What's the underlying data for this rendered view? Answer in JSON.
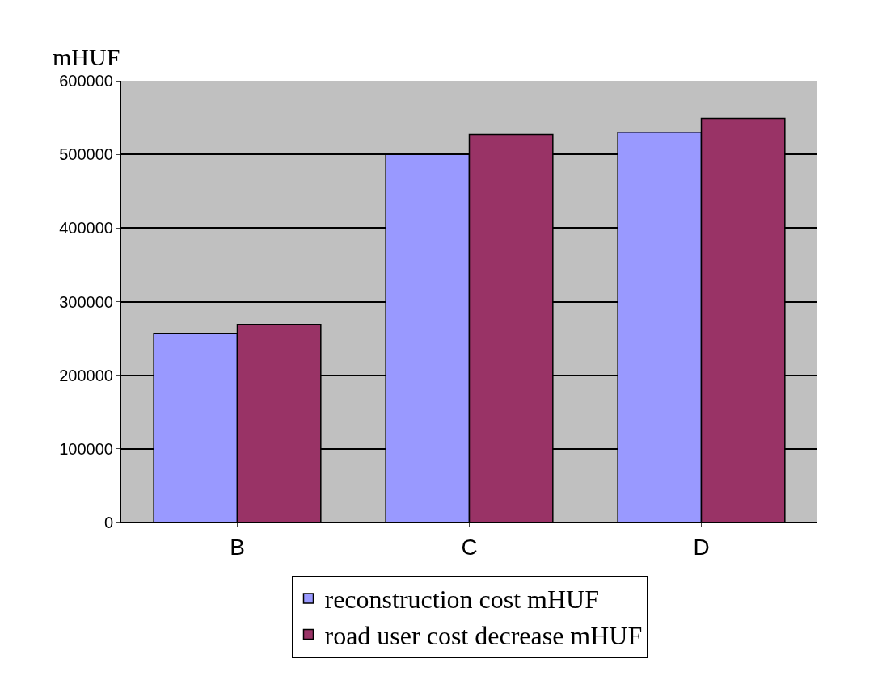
{
  "chart_data": {
    "type": "bar",
    "ylabel": "mHUF",
    "categories": [
      "B",
      "C",
      "D"
    ],
    "series": [
      {
        "name": "reconstruction cost mHUF",
        "color": "#9999ff",
        "values": [
          257000,
          500000,
          530000
        ]
      },
      {
        "name": "road user cost decrease mHUF",
        "color": "#993366",
        "values": [
          269000,
          527000,
          549000
        ]
      }
    ],
    "ylim": [
      0,
      600000
    ],
    "yticks": [
      0,
      100000,
      200000,
      300000,
      400000,
      500000,
      600000
    ],
    "grid": "y",
    "legend": "bottom"
  }
}
